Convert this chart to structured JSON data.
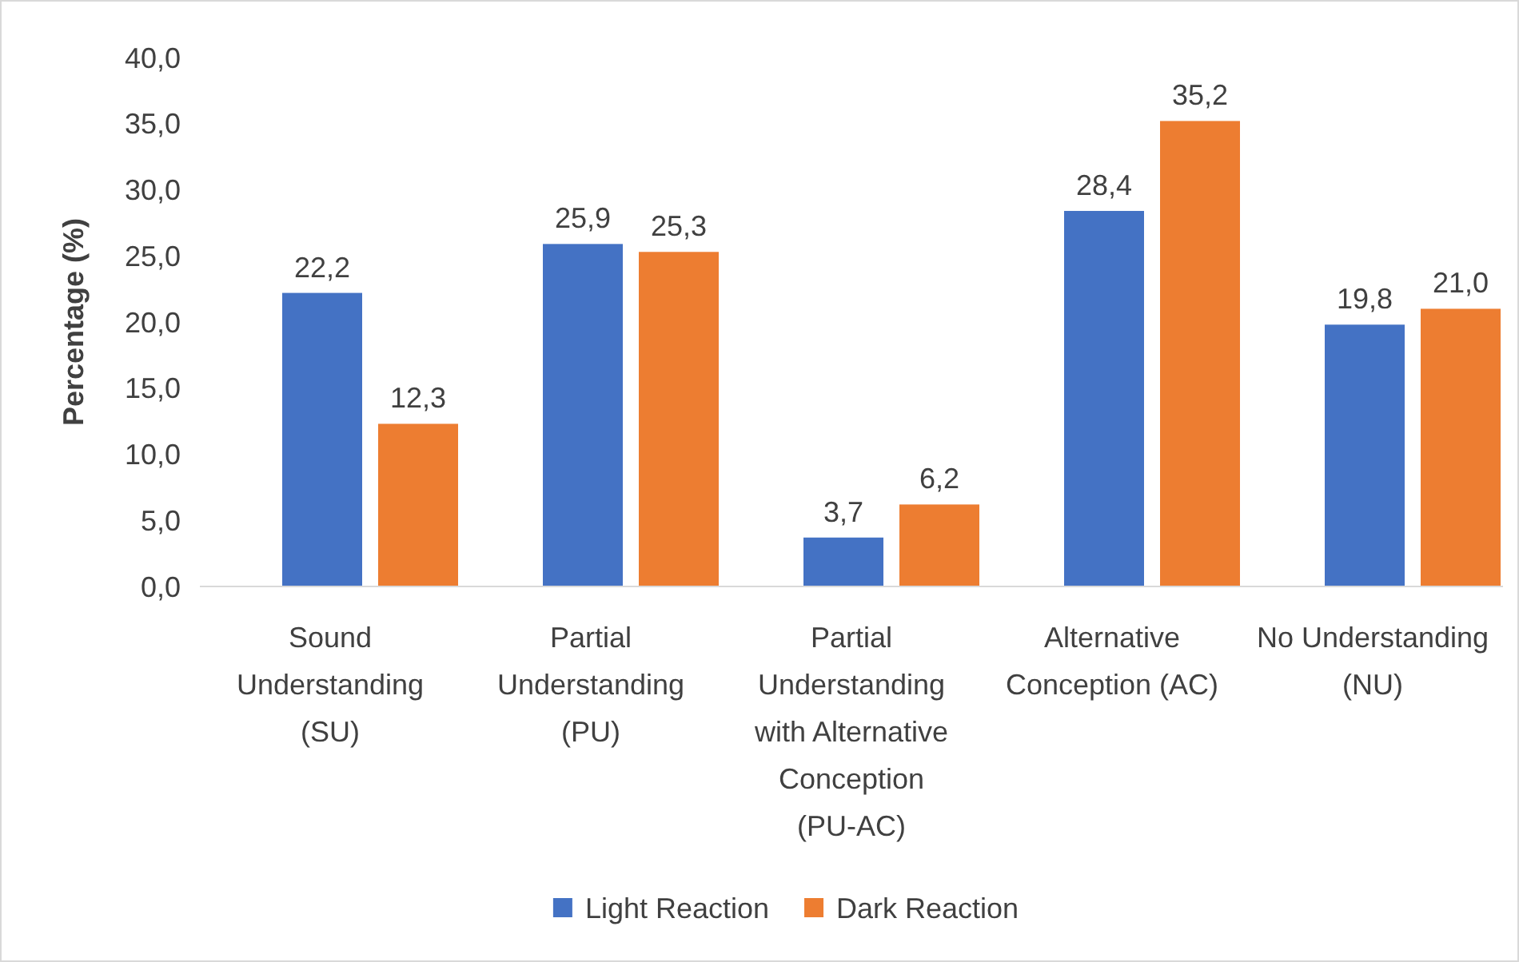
{
  "chart_data": {
    "type": "bar",
    "ylabel": "Percentage (%)",
    "categories": [
      "Sound Understanding (SU)",
      "Partial Understanding (PU)",
      "Partial Understanding with Alternative Conception (PU-AC)",
      "Alternative Conception (AC)",
      "No Understanding (NU)"
    ],
    "series": [
      {
        "name": "Light Reaction",
        "color": "#4472c4",
        "values": [
          22.2,
          25.9,
          3.7,
          28.4,
          19.8
        ],
        "value_labels": [
          "22,2",
          "25,9",
          "3,7",
          "28,4",
          "19,8"
        ]
      },
      {
        "name": "Dark Reaction",
        "color": "#ed7d31",
        "values": [
          12.3,
          25.3,
          6.2,
          35.2,
          21.0
        ],
        "value_labels": [
          "12,3",
          "25,3",
          "6,2",
          "35,2",
          "21,0"
        ]
      }
    ],
    "ylim": [
      0,
      40
    ],
    "yticks": [
      {
        "value": 0,
        "label": "0,0"
      },
      {
        "value": 5,
        "label": "5,0"
      },
      {
        "value": 10,
        "label": "10,0"
      },
      {
        "value": 15,
        "label": "15,0"
      },
      {
        "value": 20,
        "label": "20,0"
      },
      {
        "value": 25,
        "label": "25,0"
      },
      {
        "value": 30,
        "label": "30,0"
      },
      {
        "value": 35,
        "label": "35,0"
      },
      {
        "value": 40,
        "label": "40,0"
      }
    ],
    "grid": false,
    "legend": "bottom"
  }
}
